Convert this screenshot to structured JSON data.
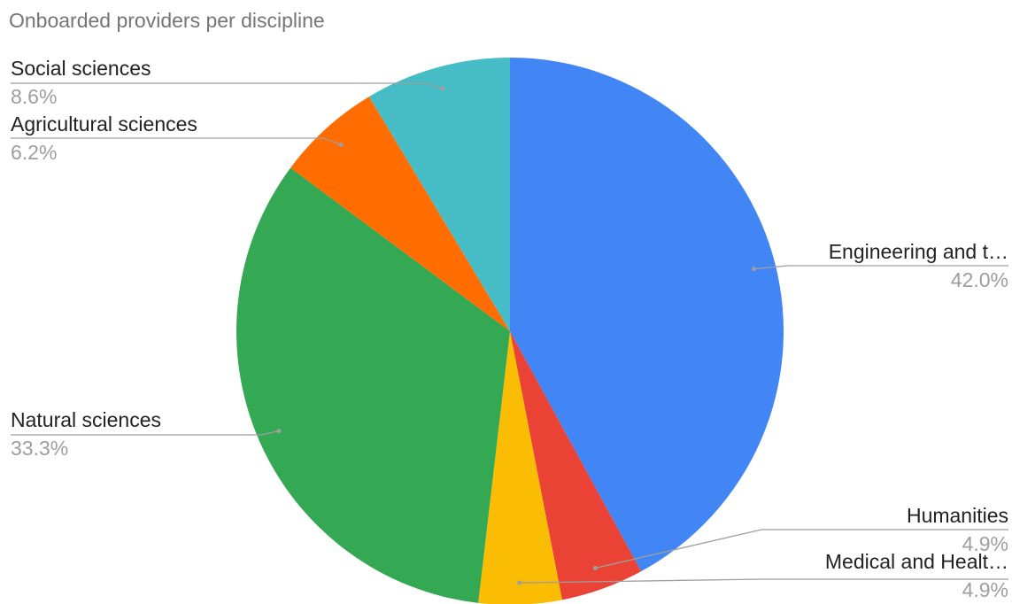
{
  "chart_data": {
    "type": "pie",
    "title": "Onboarded providers per discipline",
    "slices": [
      {
        "label": "Engineering and t…",
        "percent_label": "42.0%",
        "value": 42.0,
        "color": "#4285f4"
      },
      {
        "label": "Humanities",
        "percent_label": "4.9%",
        "value": 4.9,
        "color": "#ea4335"
      },
      {
        "label": "Medical and Healt…",
        "percent_label": "4.9%",
        "value": 4.9,
        "color": "#fbbc04"
      },
      {
        "label": "Natural sciences",
        "percent_label": "33.3%",
        "value": 33.3,
        "color": "#34a853"
      },
      {
        "label": "Agricultural sciences",
        "percent_label": "6.2%",
        "value": 6.2,
        "color": "#ff6d01"
      },
      {
        "label": "Social sciences",
        "percent_label": "8.6%",
        "value": 8.6,
        "color": "#46bdc6"
      }
    ],
    "legend": "none"
  }
}
